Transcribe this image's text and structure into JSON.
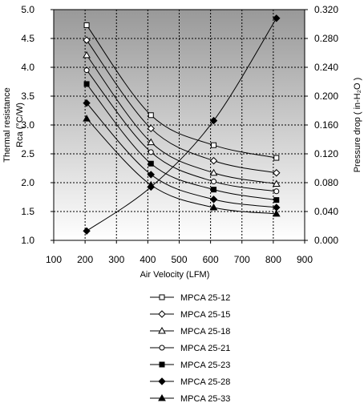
{
  "chart_data": {
    "type": "line",
    "xlabel": "Air Velocity (LFM)",
    "ylabel_left": "Thermal resistance Rca (°C/W)",
    "ylabel_left_lines": [
      "Thermal resistance",
      "Rca (°C/W)"
    ],
    "ylabel_right": "Pressure drop ( in-H₂O )",
    "xlim": [
      100,
      900
    ],
    "ylim_left": [
      1.0,
      5.0
    ],
    "ylim_right": [
      0.0,
      0.32
    ],
    "x_ticks": [
      "100",
      "200",
      "300",
      "400",
      "500",
      "600",
      "700",
      "800",
      "900"
    ],
    "y_left_ticks": [
      "1.0",
      "1.5",
      "2.0",
      "2.5",
      "3.0",
      "3.5",
      "4.0",
      "4.5",
      "5.0"
    ],
    "y_right_ticks": [
      "0.000",
      "0.040",
      "0.080",
      "0.120",
      "0.160",
      "0.200",
      "0.240",
      "0.280",
      "0.320"
    ],
    "grid": true,
    "legend_position": "bottom",
    "series": [
      {
        "name": "MPCA 25-12",
        "marker": "open-square",
        "x": [
          205,
          410,
          610,
          810
        ],
        "y": [
          4.73,
          3.17,
          2.65,
          2.43
        ]
      },
      {
        "name": "MPCA 25-15",
        "marker": "open-diamond",
        "x": [
          205,
          410,
          610,
          810
        ],
        "y": [
          4.47,
          2.94,
          2.38,
          2.17
        ]
      },
      {
        "name": "MPCA 25-18",
        "marker": "open-triangle",
        "x": [
          205,
          410,
          610,
          810
        ],
        "y": [
          4.21,
          2.7,
          2.17,
          1.98
        ]
      },
      {
        "name": "MPCA 25-21",
        "marker": "open-circle",
        "x": [
          205,
          410,
          610,
          810
        ],
        "y": [
          3.95,
          2.53,
          2.02,
          1.85
        ]
      },
      {
        "name": "MPCA 25-23",
        "marker": "filled-square",
        "x": [
          205,
          410,
          610,
          810
        ],
        "y": [
          3.71,
          2.33,
          1.88,
          1.7
        ]
      },
      {
        "name": "MPCA 25-28",
        "marker": "filled-diamond",
        "x": [
          205,
          410,
          610,
          810
        ],
        "y": [
          3.38,
          2.14,
          1.71,
          1.57
        ]
      },
      {
        "name": "MPCA 25-33",
        "marker": "filled-triangle",
        "x": [
          205,
          410,
          610,
          810
        ],
        "y": [
          3.11,
          1.96,
          1.57,
          1.46
        ]
      }
    ],
    "pressure_drop": {
      "marker": "filled-diamond",
      "x": [
        205,
        410,
        610,
        810
      ],
      "y": [
        0.013,
        0.074,
        0.166,
        0.308
      ]
    }
  }
}
